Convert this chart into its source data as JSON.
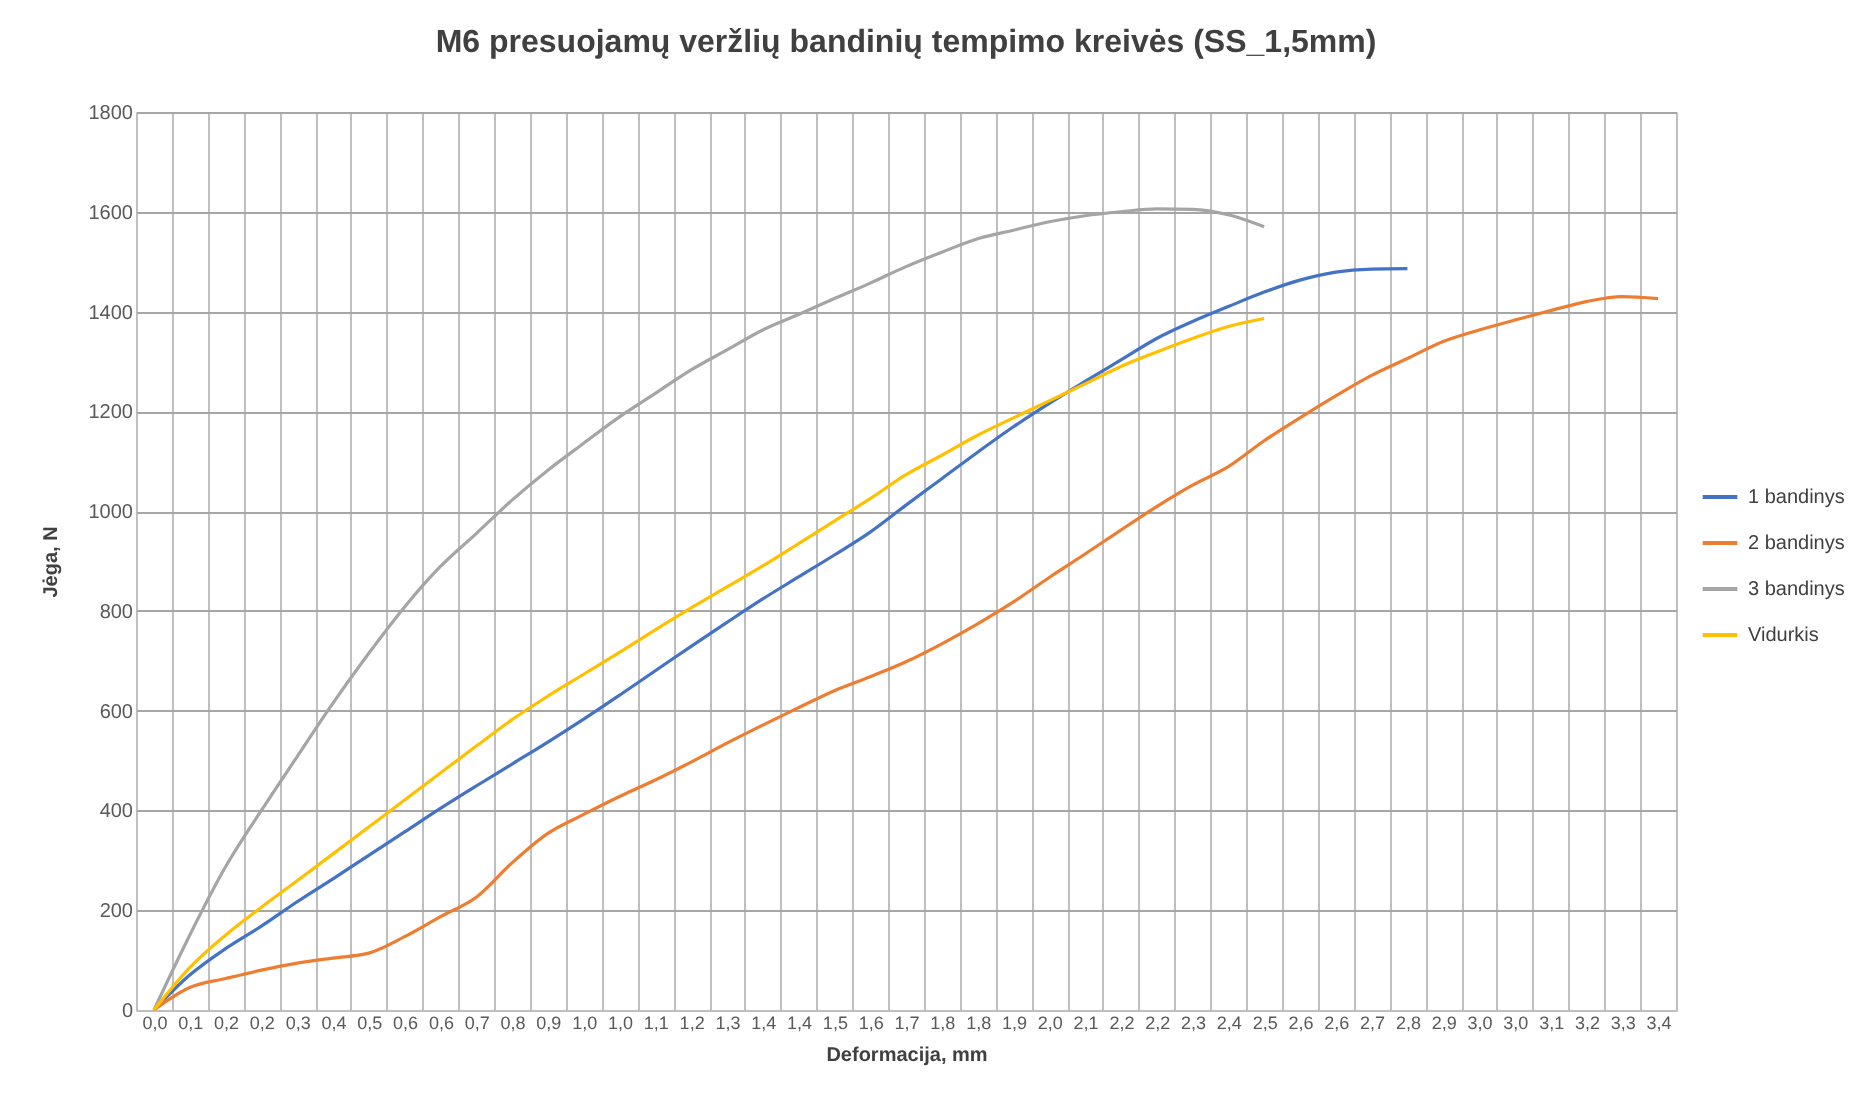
{
  "chart_data": {
    "type": "line",
    "title": "M6 presuojamų veržlių bandinių tempimo kreivės (SS_1,5mm)",
    "xlabel": "Deformacija, mm",
    "ylabel": "Jėga, N",
    "categories": [
      "0,0",
      "0,1",
      "0,2",
      "0,2",
      "0,3",
      "0,4",
      "0,5",
      "0,6",
      "0,6",
      "0,7",
      "0,8",
      "0,9",
      "1,0",
      "1,0",
      "1,1",
      "1,2",
      "1,3",
      "1,4",
      "1,4",
      "1,5",
      "1,6",
      "1,7",
      "1,8",
      "1,8",
      "1,9",
      "2,0",
      "2,1",
      "2,2",
      "2,2",
      "2,3",
      "2,4",
      "2,5",
      "2,6",
      "2,6",
      "2,7",
      "2,8",
      "2,9",
      "3,0",
      "3,0",
      "3,1",
      "3,2",
      "3,3",
      "3,4"
    ],
    "series": [
      {
        "name": "1 bandinys",
        "color": "#4472c4",
        "values": [
          0,
          70,
          123,
          168,
          217,
          263,
          310,
          357,
          404,
          449,
          493,
          537,
          583,
          631,
          680,
          729,
          777,
          824,
          868,
          912,
          958,
          1012,
          1065,
          1118,
          1169,
          1216,
          1260,
          1303,
          1346,
          1380,
          1410,
          1439,
          1463,
          1479,
          1485,
          1486,
          null,
          null,
          null,
          null,
          null,
          null,
          null
        ]
      },
      {
        "name": "2 bandinys",
        "color": "#ed7d31",
        "values": [
          0,
          45,
          63,
          80,
          94,
          104,
          114,
          147,
          187,
          226,
          295,
          354,
          392,
          428,
          461,
          497,
          535,
          571,
          606,
          640,
          668,
          698,
          734,
          774,
          818,
          867,
          914,
          962,
          1009,
          1052,
          1089,
          1141,
          1187,
          1231,
          1272,
          1306,
          1340,
          1363,
          1383,
          1402,
          1420,
          1430,
          1426
        ]
      },
      {
        "name": "3 bandinys",
        "color": "#a5a5a5",
        "values": [
          0,
          150,
          287,
          400,
          508,
          615,
          715,
          808,
          889,
          955,
          1022,
          1082,
          1136,
          1189,
          1236,
          1283,
          1323,
          1363,
          1394,
          1426,
          1457,
          1490,
          1519,
          1546,
          1563,
          1580,
          1592,
          1600,
          1606,
          1605,
          1594,
          1570,
          null,
          null,
          null,
          null,
          null,
          null,
          null,
          null,
          null,
          null,
          null
        ]
      },
      {
        "name": "Vidurkis",
        "color": "#ffc000",
        "values": [
          0,
          85,
          150,
          206,
          259,
          313,
          367,
          421,
          475,
          529,
          582,
          629,
          673,
          717,
          762,
          806,
          848,
          890,
          935,
          980,
          1025,
          1073,
          1112,
          1152,
          1187,
          1221,
          1255,
          1290,
          1319,
          1346,
          1370,
          1386,
          null,
          null,
          null,
          null,
          null,
          null,
          null,
          null,
          null,
          null,
          null
        ]
      }
    ],
    "ylim": [
      0,
      1800
    ],
    "yticks": [
      0,
      200,
      400,
      600,
      800,
      1000,
      1200,
      1400,
      1600,
      1800
    ],
    "grid": true,
    "legend": "right"
  }
}
